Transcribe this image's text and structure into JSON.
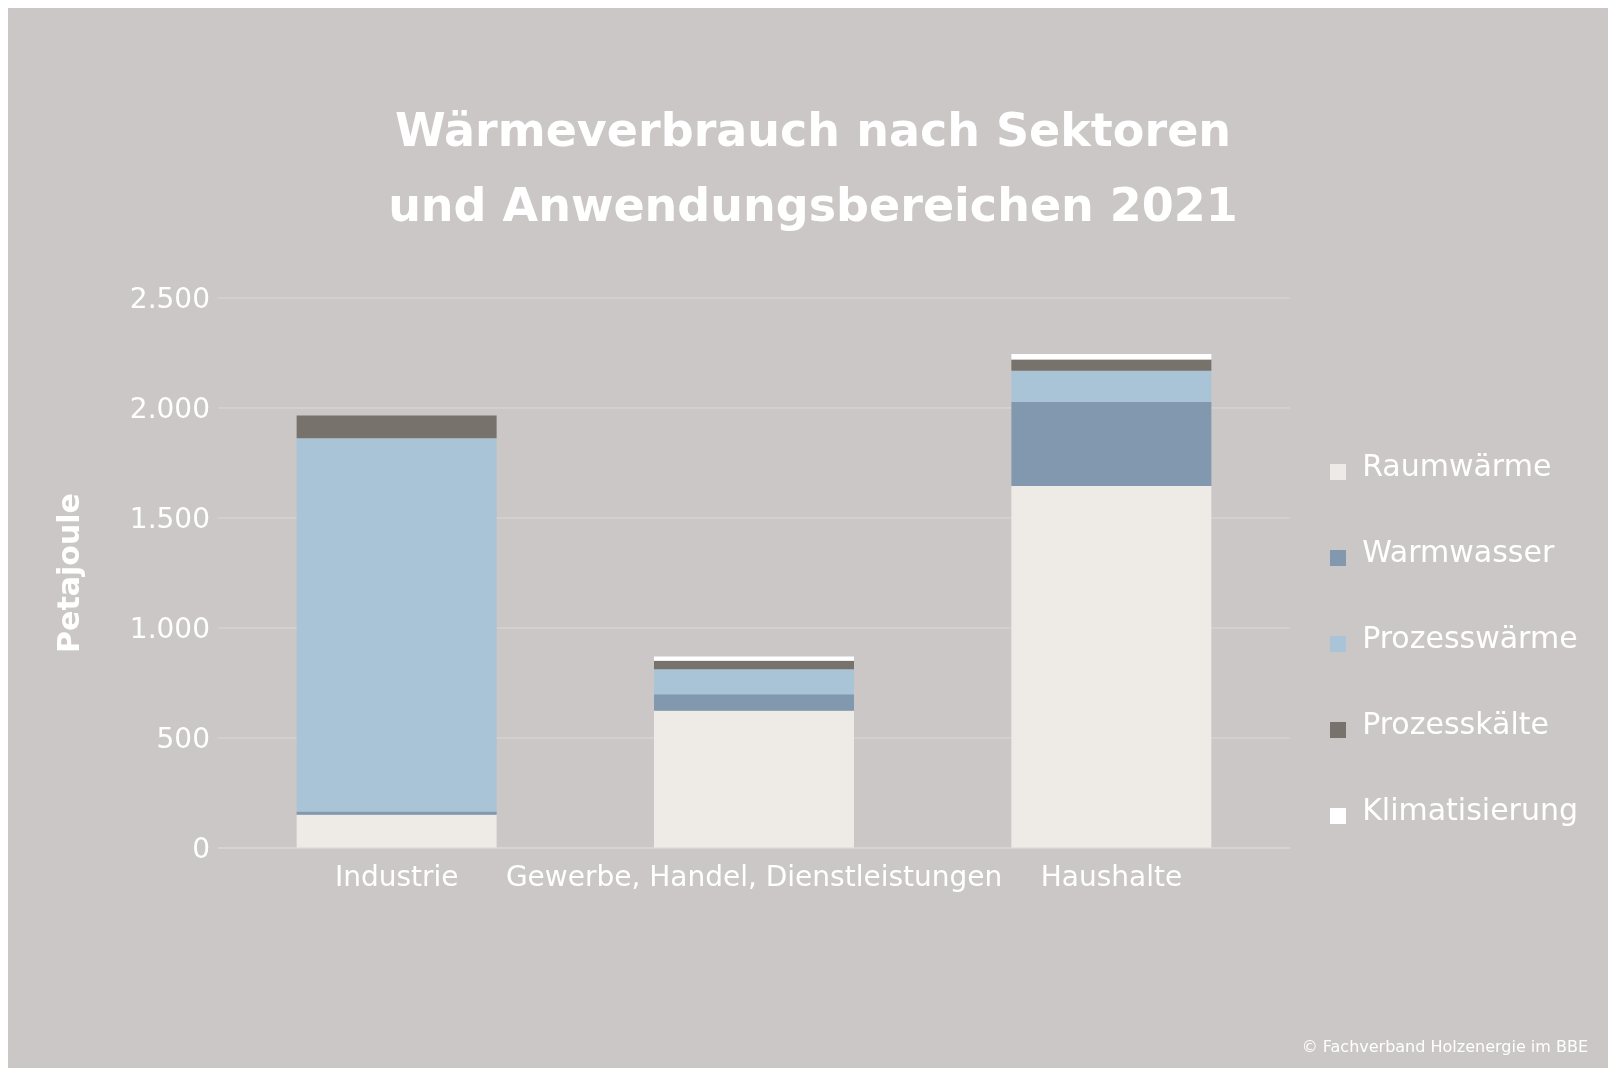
{
  "chart_data": {
    "type": "bar",
    "title": "Wärmeverbrauch nach Sektoren und Anwendungsbereichen 2021",
    "ylabel": "Petajoule",
    "categories": [
      "Industrie",
      "Gewerbe, Handel, Dienstleistungen",
      "Haushalte"
    ],
    "stacked": true,
    "series": [
      {
        "name": "Raumwärme",
        "color": "#eeeae6",
        "values": [
          151,
          624,
          1645
        ]
      },
      {
        "name": "Warmwasser",
        "color": "#8198ae",
        "values": [
          15,
          75,
          382
        ]
      },
      {
        "name": "Prozesswärme",
        "color": "#a9c4d6",
        "values": [
          1696,
          114,
          142
        ]
      },
      {
        "name": "Prozesskälte",
        "color": "#78726d",
        "values": [
          104,
          38,
          52
        ]
      },
      {
        "name": "Klimatisierung",
        "color": "#ffffff",
        "values": [
          null,
          19,
          24
        ]
      }
    ],
    "ylim": [
      0,
      2500
    ],
    "yticks": [
      0,
      500,
      {
        "value": 1000,
        "label": "1.000"
      },
      {
        "value": 1500,
        "label": "1.500"
      },
      {
        "value": 2000,
        "label": "2.000"
      },
      {
        "value": 2500,
        "label": "2.500"
      }
    ],
    "grid": "y",
    "legend": "right",
    "annotations": [
      "© Fachverband Holzenergie im BBE"
    ]
  }
}
